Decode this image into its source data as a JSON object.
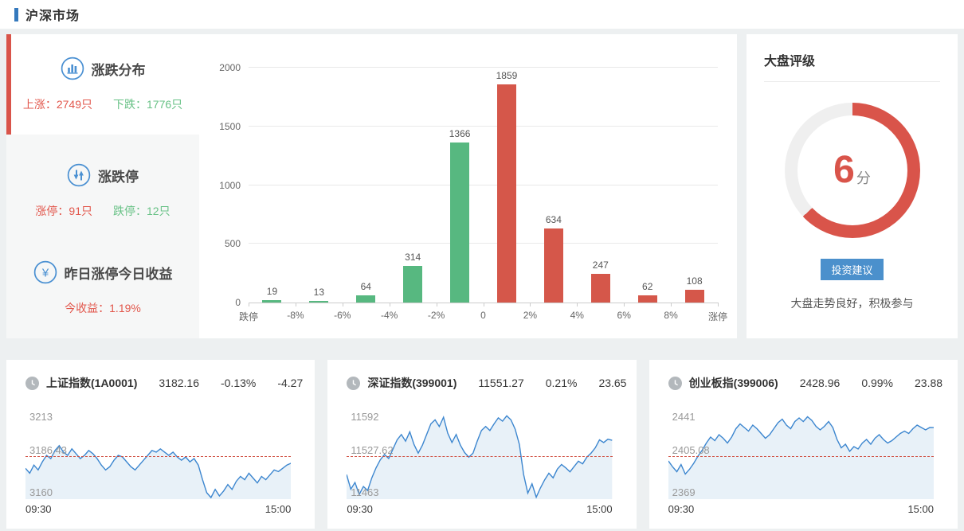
{
  "header": {
    "title": "沪深市场"
  },
  "sidebar": {
    "items": [
      {
        "title": "涨跌分布",
        "icon": "bar-chart-icon",
        "stats": [
          {
            "text": "上涨：2749只",
            "tone": "up"
          },
          {
            "text": "下跌：1776只",
            "tone": "down"
          }
        ]
      },
      {
        "title": "涨跌停",
        "icon": "up-down-arrows-icon",
        "stats": [
          {
            "text": "涨停：91只",
            "tone": "up"
          },
          {
            "text": "跌停：12只",
            "tone": "down"
          }
        ]
      },
      {
        "title": "昨日涨停今日收益",
        "icon": "yuan-icon",
        "stats": [
          {
            "text": "今收益：1.19%",
            "tone": "up"
          }
        ]
      }
    ]
  },
  "rating": {
    "title": "大盘评级",
    "score": "6",
    "score_unit": "分",
    "button_label": "投资建议",
    "advice": "大盘走势良好，积极参与"
  },
  "cards": [
    {
      "name": "上证指数(1A0001)",
      "price": "3182.16",
      "pct": "-0.13%",
      "chg": "-4.27",
      "y_max_label": "3213",
      "mid_label": "3186.43",
      "y_min_label": "3160",
      "time_start": "09:30",
      "time_end": "15:00"
    },
    {
      "name": "深证指数(399001)",
      "price": "11551.27",
      "pct": "0.21%",
      "chg": "23.65",
      "y_max_label": "11592",
      "mid_label": "11527.62",
      "y_min_label": "11463",
      "time_start": "09:30",
      "time_end": "15:00"
    },
    {
      "name": "创业板指(399006)",
      "price": "2428.96",
      "pct": "0.99%",
      "chg": "23.88",
      "y_max_label": "2441",
      "mid_label": "2405.08",
      "y_min_label": "2369",
      "time_start": "09:30",
      "time_end": "15:00"
    }
  ],
  "colors": {
    "up_red": "#e2574c",
    "down_green": "#67c185",
    "bar_red": "#d5574a",
    "bar_green": "#57b880",
    "accent_blue": "#3579bd",
    "icon_blue": "#4a90d2",
    "line_blue": "#3c86cf",
    "area_blue": "#e8f1f8",
    "gauge_red": "#d9544a",
    "dash_red": "#cf4a3c"
  },
  "chart_data": [
    {
      "type": "bar",
      "title": "涨跌分布",
      "boundaries": [
        "跌停",
        "-8%",
        "-6%",
        "-4%",
        "-2%",
        "0",
        "2%",
        "4%",
        "6%",
        "8%",
        "涨停"
      ],
      "values": [
        19,
        13,
        64,
        314,
        1366,
        1859,
        634,
        247,
        62,
        108
      ],
      "colors": [
        "green",
        "green",
        "green",
        "green",
        "green",
        "red",
        "red",
        "red",
        "red",
        "red"
      ],
      "yticks": [
        0,
        500,
        1000,
        1500,
        2000
      ],
      "ylim": [
        0,
        2000
      ],
      "grid": true,
      "legend": "none"
    },
    {
      "type": "pie",
      "title": "大盘评级",
      "score": 6,
      "unit": "分",
      "sweep_deg": 227,
      "note": "ring gauge, red arc clockwise from top"
    },
    {
      "type": "line",
      "title": "上证指数(1A0001)",
      "ylim": [
        3160,
        3213
      ],
      "prev_close": 3186.43,
      "close": 3182.16,
      "x_range": [
        "09:30",
        "15:00"
      ],
      "values": [
        3179,
        3176,
        3181,
        3178,
        3183,
        3187,
        3185,
        3190,
        3193,
        3189,
        3187,
        3191,
        3188,
        3185,
        3187,
        3190,
        3188,
        3185,
        3181,
        3178,
        3180,
        3184,
        3187,
        3186,
        3183,
        3180,
        3178,
        3181,
        3184,
        3187,
        3190,
        3189,
        3191,
        3189,
        3187,
        3189,
        3186,
        3184,
        3186,
        3183,
        3185,
        3181,
        3172,
        3164,
        3161,
        3166,
        3162,
        3165,
        3169,
        3166,
        3171,
        3174,
        3172,
        3176,
        3173,
        3170,
        3174,
        3172,
        3175,
        3178,
        3177,
        3179,
        3181,
        3182.16
      ]
    },
    {
      "type": "line",
      "title": "深证指数(399001)",
      "ylim": [
        11463,
        11592
      ],
      "prev_close": 11527.62,
      "close": 11551.27,
      "x_range": [
        "09:30",
        "15:00"
      ],
      "values": [
        11500,
        11478,
        11488,
        11470,
        11482,
        11476,
        11495,
        11510,
        11522,
        11530,
        11524,
        11538,
        11552,
        11560,
        11550,
        11564,
        11545,
        11532,
        11544,
        11560,
        11576,
        11582,
        11572,
        11586,
        11562,
        11548,
        11560,
        11544,
        11533,
        11526,
        11532,
        11550,
        11566,
        11572,
        11566,
        11576,
        11585,
        11580,
        11588,
        11582,
        11568,
        11545,
        11500,
        11472,
        11486,
        11466,
        11480,
        11492,
        11502,
        11495,
        11508,
        11515,
        11510,
        11504,
        11512,
        11520,
        11516,
        11526,
        11532,
        11540,
        11552,
        11548,
        11553,
        11551.27
      ]
    },
    {
      "type": "line",
      "title": "创业板指(399006)",
      "ylim": [
        2369,
        2441
      ],
      "prev_close": 2405.08,
      "close": 2428.96,
      "x_range": [
        "09:30",
        "15:00"
      ],
      "values": [
        2401,
        2396,
        2392,
        2398,
        2390,
        2394,
        2399,
        2405,
        2410,
        2416,
        2421,
        2418,
        2423,
        2420,
        2416,
        2421,
        2428,
        2432,
        2429,
        2426,
        2431,
        2428,
        2424,
        2420,
        2423,
        2428,
        2433,
        2436,
        2431,
        2428,
        2434,
        2437,
        2434,
        2438,
        2435,
        2430,
        2427,
        2430,
        2434,
        2429,
        2419,
        2412,
        2415,
        2409,
        2413,
        2411,
        2416,
        2419,
        2415,
        2420,
        2423,
        2419,
        2416,
        2418,
        2421,
        2424,
        2426,
        2424,
        2428,
        2431,
        2429,
        2427,
        2429,
        2428.96
      ]
    }
  ]
}
